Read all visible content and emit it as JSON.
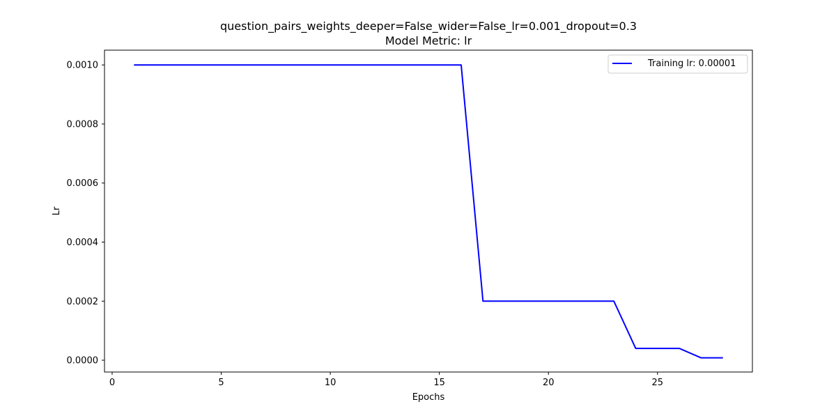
{
  "chart_data": {
    "type": "line",
    "title": "question_pairs_weights_deeper=False_wider=False_lr=0.001_dropout=0.3",
    "subtitle": "Model Metric: lr",
    "xlabel": "Epochs",
    "ylabel": "Lr",
    "xlim": [
      -0.35,
      29.35
    ],
    "ylim": [
      -4e-05,
      0.00105
    ],
    "xticks": [
      0,
      5,
      10,
      15,
      20,
      25
    ],
    "xtick_labels": [
      "0",
      "5",
      "10",
      "15",
      "20",
      "25"
    ],
    "yticks": [
      0.0,
      0.0002,
      0.0004,
      0.0006,
      0.0008,
      0.001
    ],
    "ytick_labels": [
      "0.0000",
      "0.0002",
      "0.0004",
      "0.0006",
      "0.0008",
      "0.0010"
    ],
    "grid": false,
    "legend_position": "top-right",
    "series": [
      {
        "name": "Training lr: 0.00001",
        "color": "#0000ff",
        "x": [
          1,
          2,
          3,
          4,
          5,
          6,
          7,
          8,
          9,
          10,
          11,
          12,
          13,
          14,
          15,
          16,
          17,
          18,
          19,
          20,
          21,
          22,
          23,
          24,
          25,
          26,
          27,
          28
        ],
        "y": [
          0.001,
          0.001,
          0.001,
          0.001,
          0.001,
          0.001,
          0.001,
          0.001,
          0.001,
          0.001,
          0.001,
          0.001,
          0.001,
          0.001,
          0.001,
          0.001,
          0.0002,
          0.0002,
          0.0002,
          0.0002,
          0.0002,
          0.0002,
          0.0002,
          4e-05,
          4e-05,
          4e-05,
          8e-06,
          8e-06
        ]
      }
    ]
  }
}
